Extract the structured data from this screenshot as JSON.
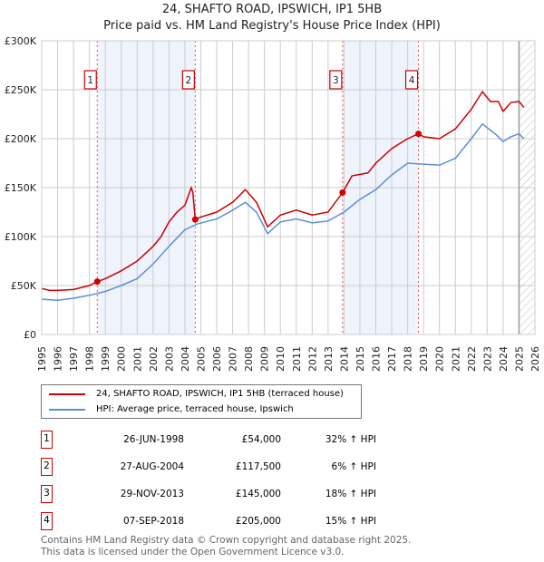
{
  "chart_data": {
    "type": "line",
    "title": "24, SHAFTO ROAD, IPSWICH, IP1 5HB",
    "subtitle": "Price paid vs. HM Land Registry's House Price Index (HPI)",
    "xlim": [
      1995,
      2026
    ],
    "ylim": [
      0,
      300000
    ],
    "yticks": [
      {
        "v": 0,
        "label": "£0"
      },
      {
        "v": 50000,
        "label": "£50K"
      },
      {
        "v": 100000,
        "label": "£100K"
      },
      {
        "v": 150000,
        "label": "£150K"
      },
      {
        "v": 200000,
        "label": "£200K"
      },
      {
        "v": 250000,
        "label": "£250K"
      },
      {
        "v": 300000,
        "label": "£300K"
      }
    ],
    "xticks": [
      "1995",
      "1996",
      "1997",
      "1998",
      "1999",
      "2000",
      "2001",
      "2002",
      "2003",
      "2004",
      "2005",
      "2006",
      "2007",
      "2008",
      "2009",
      "2010",
      "2011",
      "2012",
      "2013",
      "2014",
      "2015",
      "2016",
      "2017",
      "2018",
      "2019",
      "2020",
      "2021",
      "2022",
      "2023",
      "2024",
      "2025",
      "2026"
    ],
    "shaded": [
      [
        1998.49,
        2004.65
      ],
      [
        2013.91,
        2018.68
      ]
    ],
    "hatched_from": 2025.0,
    "series": [
      {
        "name": "24, SHAFTO ROAD, IPSWICH, IP1 5HB (terraced house)",
        "color": "#cc0000",
        "x": [
          1995,
          1995.5,
          1996,
          1997,
          1998,
          1998.49,
          1999,
          2000,
          2001,
          2002,
          2002.5,
          2003,
          2003.5,
          2004,
          2004.4,
          2004.5,
          2004.65,
          2005,
          2006,
          2007,
          2007.8,
          2008.5,
          2009.2,
          2010,
          2011,
          2012,
          2013,
          2013.91,
          2014.5,
          2015.5,
          2016,
          2017,
          2017.5,
          2018,
          2018.68,
          2019,
          2020,
          2021,
          2021.5,
          2022,
          2022.7,
          2023.2,
          2023.7,
          2024,
          2024.5,
          2025,
          2025.3
        ],
        "y": [
          47000,
          45000,
          45000,
          46000,
          50000,
          54000,
          57000,
          65000,
          75000,
          90000,
          100000,
          115000,
          125000,
          132000,
          150000,
          145000,
          117500,
          120000,
          125000,
          135000,
          148000,
          135000,
          110000,
          122000,
          127000,
          122000,
          125000,
          145000,
          162000,
          165000,
          175000,
          190000,
          195000,
          200000,
          205000,
          202000,
          200000,
          210000,
          220000,
          230000,
          248000,
          238000,
          238000,
          228000,
          237000,
          238000,
          232000
        ]
      },
      {
        "name": "HPI: Average price, terraced house, Ipswich",
        "color": "#5b8fd6",
        "x": [
          1995,
          1996,
          1997,
          1998,
          1999,
          2000,
          2001,
          2002,
          2003,
          2004,
          2004.8,
          2006,
          2007,
          2007.8,
          2008.5,
          2009.2,
          2010,
          2011,
          2012,
          2013,
          2014,
          2015,
          2016,
          2017,
          2018,
          2019,
          2020,
          2021,
          2022,
          2022.7,
          2023.5,
          2024,
          2024.5,
          2025,
          2025.3
        ],
        "y": [
          36000,
          35000,
          37000,
          40000,
          44000,
          50000,
          57000,
          72000,
          90000,
          107000,
          113000,
          118000,
          127000,
          135000,
          125000,
          103000,
          115000,
          118000,
          114000,
          116000,
          125000,
          138000,
          148000,
          163000,
          175000,
          174000,
          173000,
          180000,
          200000,
          215000,
          205000,
          197000,
          202000,
          205000,
          200000
        ]
      }
    ],
    "markers": [
      {
        "n": "1",
        "x": 1998.49,
        "y": 54000
      },
      {
        "n": "2",
        "x": 2004.65,
        "y": 117500
      },
      {
        "n": "3",
        "x": 2013.91,
        "y": 145000
      },
      {
        "n": "4",
        "x": 2018.68,
        "y": 205000
      }
    ]
  },
  "legend": {
    "red": "24, SHAFTO ROAD, IPSWICH, IP1 5HB (terraced house)",
    "blue": "HPI: Average price, terraced house, Ipswich"
  },
  "transactions": [
    {
      "n": "1",
      "date": "26-JUN-1998",
      "price": "£54,000",
      "hpi": "32% ↑ HPI"
    },
    {
      "n": "2",
      "date": "27-AUG-2004",
      "price": "£117,500",
      "hpi": "6% ↑ HPI"
    },
    {
      "n": "3",
      "date": "29-NOV-2013",
      "price": "£145,000",
      "hpi": "18% ↑ HPI"
    },
    {
      "n": "4",
      "date": "07-SEP-2018",
      "price": "£205,000",
      "hpi": "15% ↑ HPI"
    }
  ],
  "footer": {
    "line1": "Contains HM Land Registry data © Crown copyright and database right 2025.",
    "line2": "This data is licensed under the Open Government Licence v3.0."
  }
}
